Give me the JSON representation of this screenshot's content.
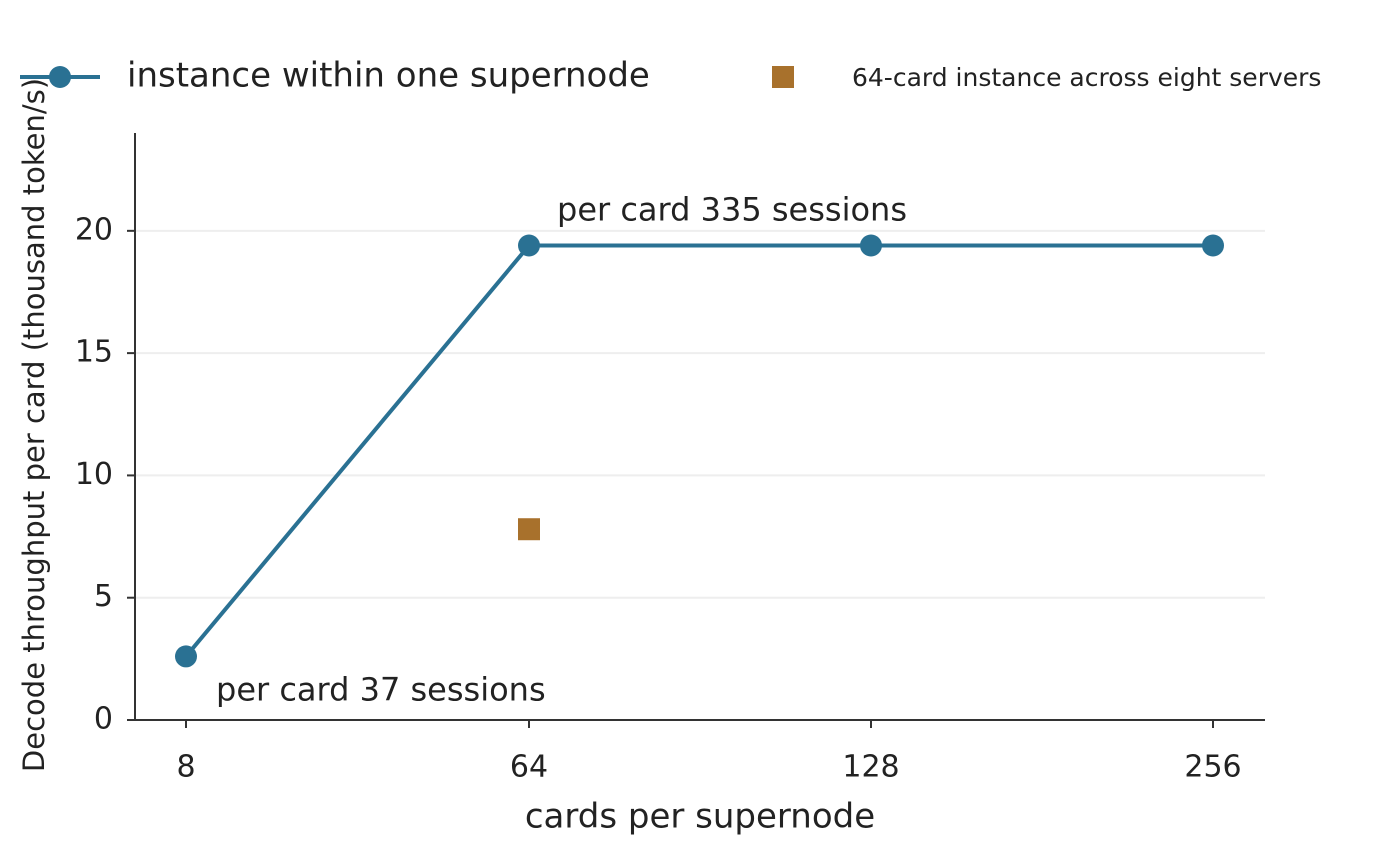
{
  "chart_data": {
    "type": "line",
    "xlabel": "cards per supernode",
    "ylabel": "Decode throughput per card (thousand token/s)",
    "categories": [
      "8",
      "64",
      "128",
      "256"
    ],
    "series": [
      {
        "name": "instance within one supernode",
        "color": "#2a7193",
        "mode": "lines+markers",
        "marker": "circle",
        "values": [
          2.6,
          19.4,
          19.4,
          19.4
        ]
      },
      {
        "name": "64-card instance across eight servers",
        "color": "#a8712c",
        "mode": "markers",
        "marker": "square",
        "values": [
          null,
          7.8,
          null,
          null
        ]
      }
    ],
    "annotations": [
      "per card 335 sessions",
      "per card 37 sessions"
    ],
    "ylim": [
      0,
      24
    ],
    "yticks": [
      0,
      5,
      10,
      15,
      20
    ],
    "grid": true,
    "legend": "top"
  }
}
